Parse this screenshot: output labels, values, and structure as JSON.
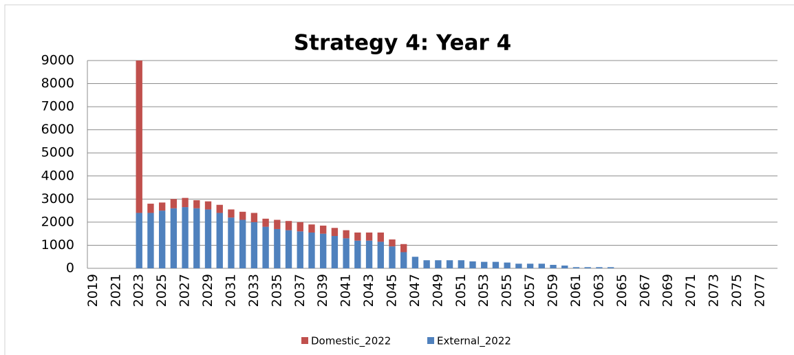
{
  "chart_data": {
    "type": "stacked_bar",
    "title": "Strategy 4: Year 4",
    "categories": [
      "2019",
      null,
      "2021",
      null,
      "2023",
      null,
      "2025",
      null,
      "2027",
      null,
      "2029",
      null,
      "2031",
      null,
      "2033",
      null,
      "2035",
      null,
      "2037",
      null,
      "2039",
      null,
      "2041",
      null,
      "2043",
      null,
      "2045",
      null,
      "2047",
      null,
      "2049",
      null,
      "2051",
      null,
      "2053",
      null,
      "2055",
      null,
      "2057",
      null,
      "2059",
      null,
      "2061",
      null,
      "2063",
      null,
      "2065",
      null,
      "2067",
      null,
      "2069",
      null,
      "2071",
      null,
      "2073",
      null,
      "2075",
      null,
      "2077",
      null
    ],
    "series": [
      {
        "name": "External_2022",
        "color": "#4f81bd",
        "values": [
          0,
          0,
          0,
          0,
          2400,
          2400,
          2500,
          2600,
          2650,
          2600,
          2550,
          2400,
          2200,
          2100,
          2000,
          1800,
          1700,
          1650,
          1600,
          1550,
          1500,
          1400,
          1300,
          1200,
          1200,
          1150,
          950,
          700,
          500,
          350,
          350,
          350,
          350,
          300,
          280,
          280,
          250,
          200,
          200,
          200,
          150,
          120,
          50,
          50,
          50,
          50,
          0,
          0,
          0,
          0,
          0,
          0,
          0,
          0,
          0,
          0,
          0,
          0,
          0,
          0
        ]
      },
      {
        "name": "Domestic_2022",
        "color": "#c0504d",
        "values": [
          0,
          0,
          0,
          0,
          6600,
          400,
          350,
          400,
          400,
          350,
          350,
          350,
          350,
          350,
          400,
          350,
          400,
          400,
          400,
          350,
          350,
          350,
          350,
          350,
          350,
          400,
          300,
          350,
          0,
          0,
          0,
          0,
          0,
          0,
          0,
          0,
          0,
          0,
          0,
          0,
          0,
          0,
          0,
          0,
          0,
          0,
          0,
          0,
          0,
          0,
          0,
          0,
          0,
          0,
          0,
          0,
          0,
          0,
          0,
          0
        ]
      }
    ],
    "ylim": [
      0,
      9000
    ],
    "yticks": [
      0,
      1000,
      2000,
      3000,
      4000,
      5000,
      6000,
      7000,
      8000,
      9000
    ],
    "grid": true,
    "legend": "bottom"
  }
}
